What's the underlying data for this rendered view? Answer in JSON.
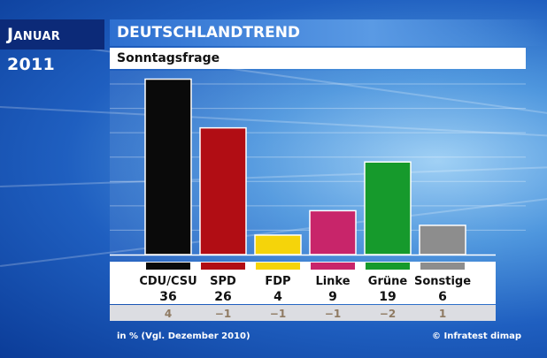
{
  "header": {
    "month": "Januar 2011",
    "program": "DEUTSCHLANDTREND",
    "question": "Sonntagsfrage"
  },
  "footer": {
    "note": "in % (Vgl. Dezember 2010)",
    "source": "© Infratest dimap"
  },
  "chart_data": {
    "type": "bar",
    "title": "Sonntagsfrage",
    "categories": [
      "CDU/CSU",
      "SPD",
      "FDP",
      "Linke",
      "Grüne",
      "Sonstige"
    ],
    "values": [
      36,
      26,
      4,
      9,
      19,
      6
    ],
    "changes": [
      "4",
      "−1",
      "−1",
      "−1",
      "−2",
      "1"
    ],
    "colors": [
      "#0a0a0a",
      "#b10d14",
      "#f5d40a",
      "#c8256a",
      "#169a2c",
      "#8d8d8d"
    ],
    "ylim": [
      0,
      37
    ],
    "grid": true
  }
}
